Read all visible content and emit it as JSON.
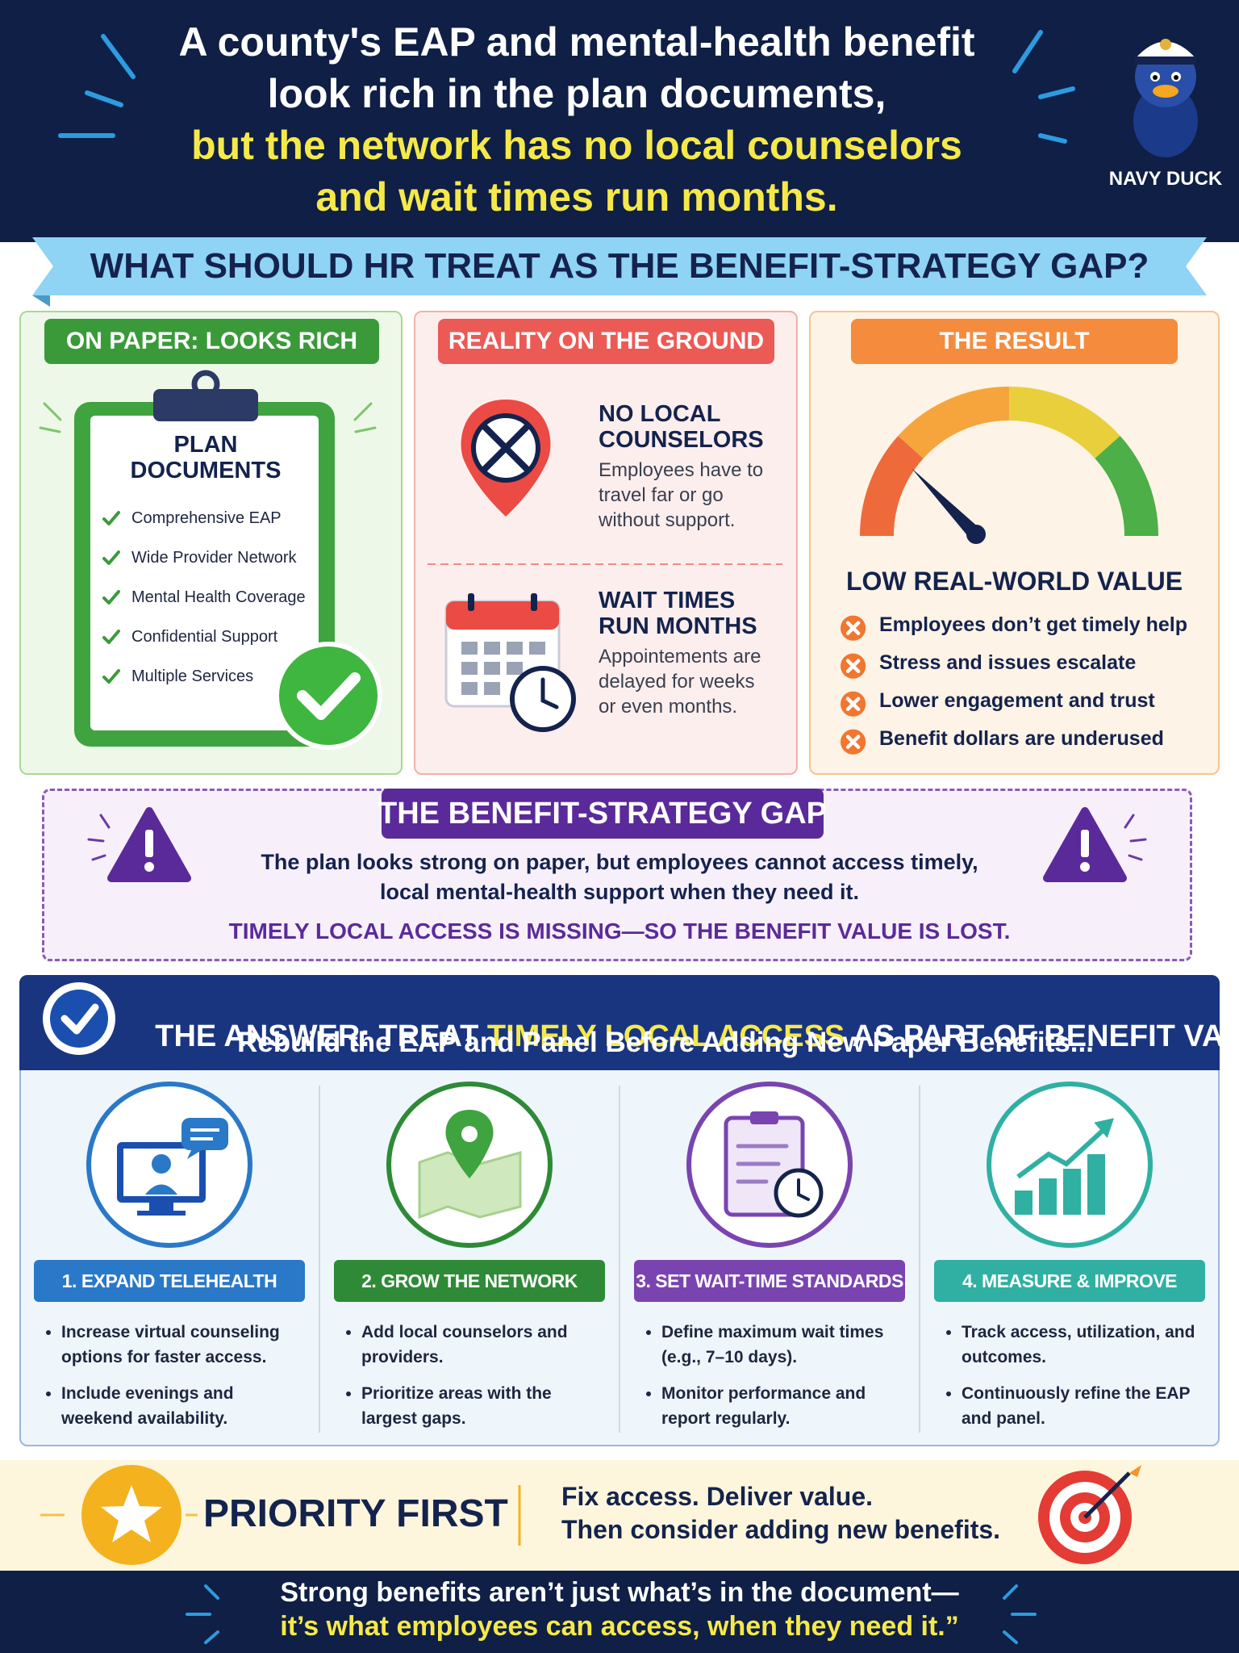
{
  "header": {
    "title": [
      "A county's EAP and mental-health benefit",
      "look rich in the plan documents,",
      "but the network has no local counselors",
      "and wait times run months."
    ],
    "logo": "NAVY DUCK",
    "question": "WHAT SHOULD HR TREAT AS THE BENEFIT-STRATEGY GAP?"
  },
  "paper": {
    "badge": "ON PAPER: LOOKS RICH",
    "doc_title": "PLAN DOCUMENTS",
    "items": [
      "Comprehensive EAP",
      "Wide Provider Network",
      "Mental Health Coverage",
      "Confidential Support",
      "Multiple Services"
    ]
  },
  "reality": {
    "badge": "REALITY ON THE GROUND",
    "items": [
      {
        "title": "NO LOCAL COUNSELORS",
        "text": "Employees have to travel far or go without support."
      },
      {
        "title": "WAIT TIMES RUN MONTHS",
        "text": "Appointements are delayed for weeks or even months."
      }
    ]
  },
  "result": {
    "badge": "THE RESULT",
    "title": "LOW REAL-WORLD VALUE",
    "items": [
      "Employees don’t get timely help",
      "Stress and issues escalate",
      "Lower engagement and trust",
      "Benefit dollars are underused"
    ]
  },
  "gap": {
    "badge": "THE BENEFIT-STRATEGY GAP",
    "text": "The plan looks strong on paper, but employees cannot access timely, local mental-health support when they need it.",
    "emphasis": "TIMELY LOCAL ACCESS IS MISSING—SO THE BENEFIT VALUE IS LOST."
  },
  "answer": {
    "title_before": "THE ANSWER: TREAT ",
    "title_highlight": "TIMELY LOCAL ACCESS",
    "title_after": " AS PART OF BENEFIT VALUE",
    "subtitle": "Rebuild the EAP and Panel Before Adding New Paper Benefits...",
    "steps": [
      {
        "title": "1. EXPAND TELEHEALTH",
        "bullets": [
          "Increase virtual counseling options for faster access.",
          "Include evenings and weekend availability."
        ]
      },
      {
        "title": "2. GROW THE NETWORK",
        "bullets": [
          "Add local counselors and providers.",
          "Prioritize areas with the largest gaps."
        ]
      },
      {
        "title": "3. SET WAIT-TIME STANDARDS",
        "bullets": [
          "Define maximum wait times (e.g., 7–10 days).",
          "Monitor performance and report regularly."
        ]
      },
      {
        "title": "4. MEASURE & IMPROVE",
        "bullets": [
          "Track access, utilization, and outcomes.",
          "Continuously refine the EAP and panel."
        ]
      }
    ]
  },
  "priority": {
    "label": "PRIORITY FIRST",
    "text": [
      "Fix access. Deliver value.",
      "Then consider adding new benefits."
    ]
  },
  "footer": {
    "lines": [
      "Strong benefits aren’t just what’s in the document—",
      "it’s what employees can access, when they need it.”"
    ]
  }
}
